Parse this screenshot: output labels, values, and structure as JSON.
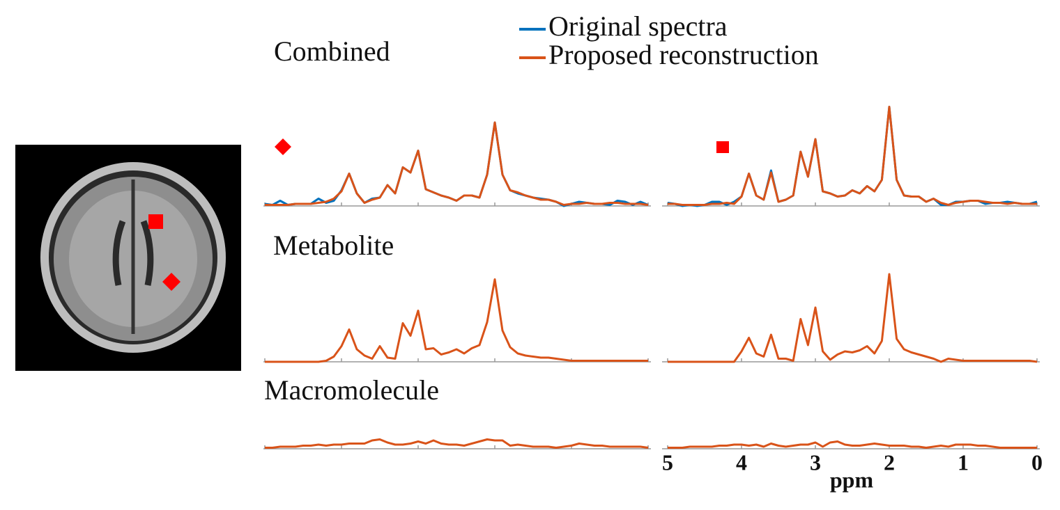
{
  "chart_data": {
    "type": "line",
    "rows": [
      "Combined",
      "Metabolite",
      "Macromolecule"
    ],
    "xlabel": "ppm",
    "xlim": [
      5,
      0
    ],
    "xticks": [
      5,
      4,
      3,
      2,
      1,
      0
    ],
    "ylim": [
      0,
      100
    ],
    "x": [
      5,
      4.9,
      4.8,
      4.7,
      4.6,
      4.5,
      4.4,
      4.3,
      4.2,
      4.1,
      4,
      3.9,
      3.8,
      3.7,
      3.6,
      3.5,
      3.4,
      3.3,
      3.2,
      3.1,
      3,
      2.9,
      2.8,
      2.7,
      2.6,
      2.5,
      2.4,
      2.3,
      2.2,
      2.1,
      2,
      1.9,
      1.8,
      1.7,
      1.6,
      1.5,
      1.4,
      1.3,
      1.2,
      1.1,
      1,
      0.9,
      0.8,
      0.7,
      0.6,
      0.5,
      0.4,
      0.3,
      0.2,
      0.1,
      0
    ],
    "series": [
      {
        "name": "Original spectra",
        "color": "#0072bd",
        "values": [
          [
            [
              2,
              1,
              5,
              1,
              2,
              2,
              2,
              7,
              3,
              5,
              15,
              31,
              12,
              3,
              7,
              8,
              20,
              12,
              37,
              32,
              53,
              16,
              13,
              10,
              8,
              5,
              10,
              10,
              8,
              30,
              80,
              30,
              15,
              12,
              10,
              8,
              7,
              6,
              4,
              0,
              2,
              4,
              3,
              2,
              2,
              1,
              5,
              4,
              1,
              4,
              1
            ],
            [
              3,
              2,
              0,
              1,
              0,
              1,
              4,
              4,
              1,
              4,
              9,
              31,
              10,
              6,
              34,
              4,
              6,
              10,
              52,
              28,
              64,
              14,
              12,
              9,
              10,
              15,
              12,
              19,
              14,
              25,
              95,
              25,
              10,
              9,
              9,
              4,
              7,
              1,
              1,
              4,
              4,
              5,
              5,
              2,
              3,
              3,
              4,
              3,
              2,
              2,
              4
            ]
          ]
        ]
      },
      {
        "name": "Proposed reconstruction",
        "color": "#d95319",
        "values": [
          [
            [
              1,
              1,
              1,
              1,
              2,
              2,
              2,
              3,
              4,
              7,
              14,
              31,
              12,
              3,
              6,
              8,
              20,
              12,
              37,
              32,
              53,
              16,
              13,
              10,
              8,
              5,
              10,
              10,
              8,
              30,
              80,
              30,
              15,
              13,
              10,
              8,
              6,
              6,
              4,
              1,
              2,
              2,
              3,
              2,
              2,
              3,
              3,
              2,
              2,
              2,
              1
            ],
            [
              2,
              2,
              1,
              1,
              1,
              1,
              2,
              2,
              3,
              2,
              9,
              31,
              10,
              6,
              32,
              4,
              6,
              10,
              52,
              28,
              64,
              14,
              12,
              9,
              10,
              15,
              12,
              19,
              14,
              25,
              95,
              25,
              10,
              9,
              9,
              4,
              7,
              3,
              1,
              3,
              4,
              5,
              5,
              4,
              3,
              3,
              2,
              3,
              2,
              2,
              2
            ]
          ],
          [
            [
              0,
              0,
              0,
              0,
              0,
              0,
              0,
              0,
              1,
              5,
              15,
              31,
              12,
              6,
              3,
              15,
              4,
              3,
              37,
              25,
              49,
              12,
              13,
              7,
              9,
              12,
              8,
              13,
              16,
              38,
              79,
              30,
              14,
              8,
              6,
              5,
              4,
              4,
              3,
              2,
              1,
              1,
              1,
              1,
              1,
              1,
              1,
              1,
              1,
              1,
              1
            ],
            [
              0,
              0,
              0,
              0,
              0,
              0,
              0,
              0,
              0,
              0,
              10,
              23,
              8,
              5,
              26,
              3,
              3,
              1,
              41,
              16,
              52,
              10,
              2,
              7,
              10,
              9,
              11,
              15,
              8,
              20,
              84,
              22,
              12,
              9,
              7,
              5,
              3,
              0,
              3,
              2,
              1,
              1,
              1,
              1,
              1,
              1,
              1,
              1,
              1,
              1,
              0
            ]
          ],
          [
            [
              1,
              1,
              2,
              2,
              2,
              3,
              3,
              4,
              3,
              4,
              4,
              5,
              5,
              5,
              8,
              9,
              6,
              4,
              4,
              5,
              7,
              5,
              8,
              5,
              4,
              4,
              3,
              5,
              7,
              9,
              8,
              8,
              3,
              4,
              3,
              2,
              2,
              2,
              1,
              2,
              3,
              5,
              4,
              3,
              3,
              2,
              2,
              2,
              2,
              2,
              1
            ],
            [
              1,
              1,
              1,
              2,
              2,
              2,
              2,
              3,
              3,
              4,
              4,
              3,
              4,
              2,
              5,
              3,
              2,
              3,
              4,
              4,
              6,
              2,
              6,
              7,
              4,
              3,
              3,
              4,
              5,
              4,
              3,
              3,
              3,
              2,
              2,
              1,
              2,
              3,
              2,
              4,
              4,
              4,
              3,
              3,
              2,
              1,
              1,
              1,
              1,
              1,
              1
            ]
          ]
        ]
      }
    ]
  }
}
